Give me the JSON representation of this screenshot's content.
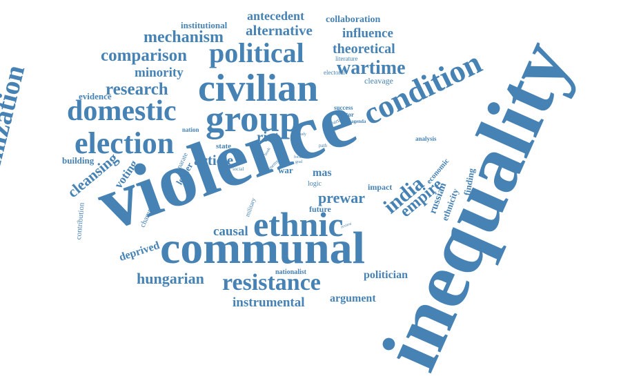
{
  "color": "#4682b4",
  "words": [
    "inequality",
    "violence",
    "communal",
    "ethnic",
    "civilian",
    "group",
    "condition",
    "political",
    "domestic",
    "election",
    "resistance",
    "victimization",
    "india",
    "wartime",
    "comparison",
    "mechanism",
    "alternative",
    "theoretical",
    "research",
    "minority",
    "antecedent",
    "influence",
    "collaboration",
    "institutional",
    "hungarian",
    "instrumental",
    "empire",
    "prewar",
    "riot",
    "article",
    "cleansing",
    "voting",
    "causal",
    "deprived",
    "argument",
    "politician",
    "evidence",
    "building",
    "mas",
    "russian",
    "ethnicity",
    "finding",
    "economic",
    "leader",
    "state",
    "contribution",
    "champion",
    "nationalist",
    "future",
    "impact",
    "logic",
    "military",
    "separate",
    "cleavage",
    "electoral",
    "literature",
    "success",
    "factor",
    "agenda",
    "partie",
    "nation",
    "analysis",
    "war",
    "enemy",
    "social",
    "book",
    "role",
    "focus",
    "goal",
    "study",
    "path",
    "review"
  ]
}
